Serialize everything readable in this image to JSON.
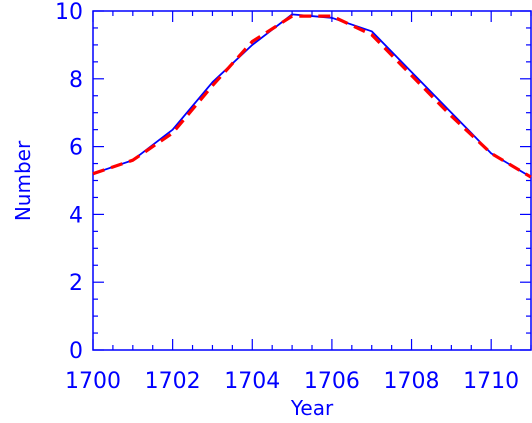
{
  "chart_data": {
    "type": "line",
    "xlabel": "Year",
    "ylabel": "Number",
    "xlim": [
      1700,
      1711
    ],
    "ylim": [
      0,
      10
    ],
    "x_ticks": [
      1700,
      1702,
      1704,
      1706,
      1708,
      1710
    ],
    "y_ticks": [
      0,
      2,
      4,
      6,
      8,
      10
    ],
    "grid": false,
    "series": [
      {
        "style": "solid",
        "color": "#0000ff",
        "x": [
          1700,
          1701,
          1702,
          1703,
          1704,
          1705,
          1706,
          1707,
          1708,
          1709,
          1710,
          1711
        ],
        "y": [
          5.2,
          5.6,
          6.5,
          7.9,
          9.0,
          9.9,
          9.8,
          9.4,
          8.2,
          7.0,
          5.8,
          5.1
        ]
      },
      {
        "style": "dashed",
        "color": "#ff0000",
        "x": [
          1700,
          1701,
          1702,
          1703,
          1704,
          1705,
          1706,
          1707,
          1708,
          1709,
          1710,
          1711
        ],
        "y": [
          5.2,
          5.6,
          6.4,
          7.8,
          9.1,
          9.85,
          9.85,
          9.3,
          8.1,
          6.9,
          5.8,
          5.1
        ]
      }
    ]
  }
}
